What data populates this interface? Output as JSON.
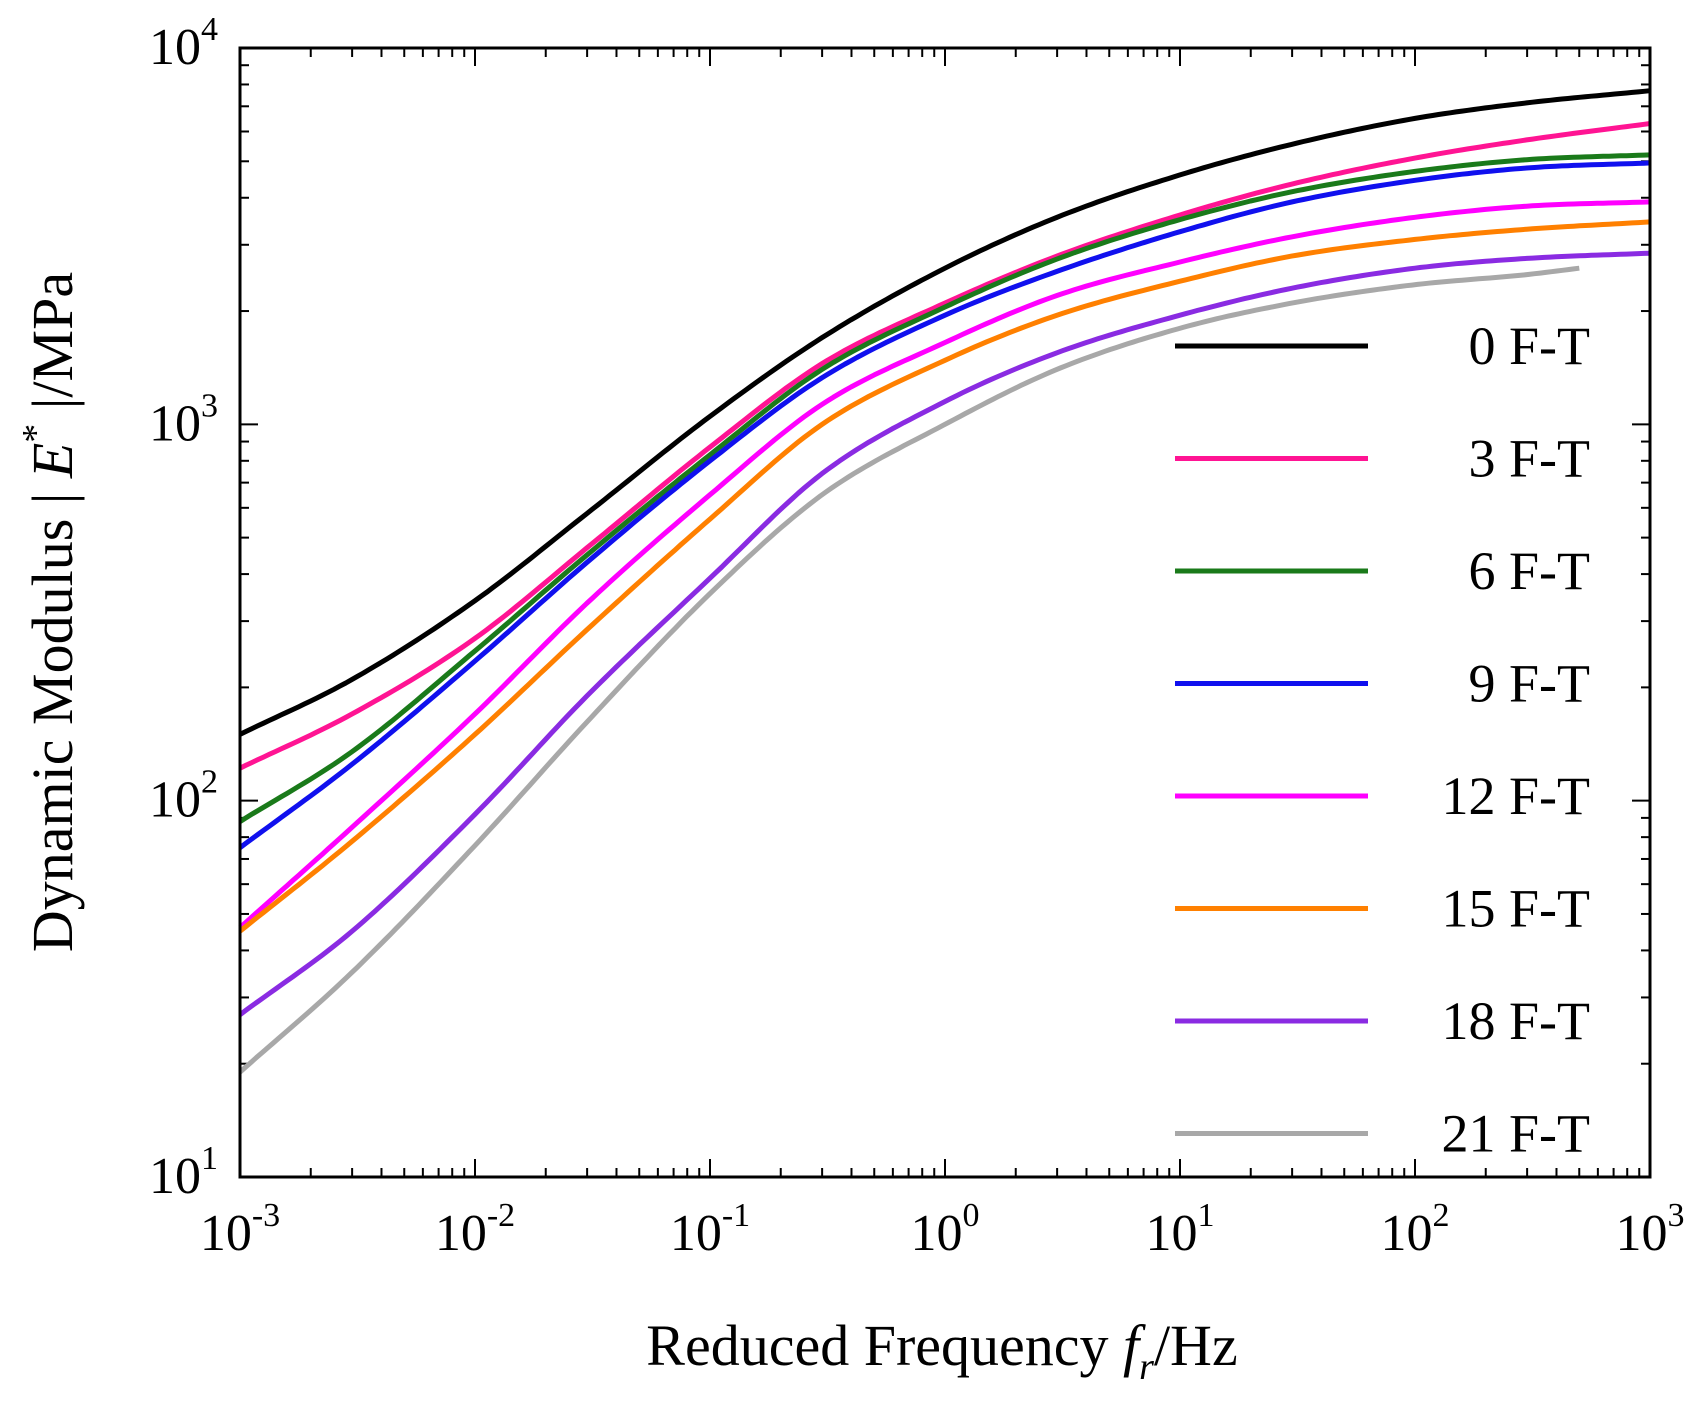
{
  "chart_data": {
    "type": "line",
    "title": "",
    "xlabel": {
      "prefix": "Reduced Frequency ",
      "var": "f",
      "sub": "r",
      "suffix": "/Hz"
    },
    "ylabel": {
      "prefix": "Dynamic Modulus | ",
      "var": "E",
      "sup": "*",
      "suffix": " |/MPa"
    },
    "xscale": "log",
    "yscale": "log",
    "xlim": [
      0.001,
      1000
    ],
    "ylim": [
      10,
      10000
    ],
    "x_ticks": [
      {
        "value": 0.001,
        "base": "10",
        "exp": "-3"
      },
      {
        "value": 0.01,
        "base": "10",
        "exp": "-2"
      },
      {
        "value": 0.1,
        "base": "10",
        "exp": "-1"
      },
      {
        "value": 1,
        "base": "10",
        "exp": "0"
      },
      {
        "value": 10,
        "base": "10",
        "exp": "1"
      },
      {
        "value": 100,
        "base": "10",
        "exp": "2"
      },
      {
        "value": 1000,
        "base": "10",
        "exp": "3"
      }
    ],
    "y_ticks": [
      {
        "value": 10,
        "base": "10",
        "exp": "1"
      },
      {
        "value": 100,
        "base": "10",
        "exp": "2"
      },
      {
        "value": 1000,
        "base": "10",
        "exp": "3"
      },
      {
        "value": 10000,
        "base": "10",
        "exp": "4"
      }
    ],
    "grid": false,
    "legend_position": "right",
    "series": [
      {
        "name": "0 F-T",
        "color": "#000000",
        "x": [
          0.001,
          0.003,
          0.01,
          0.03,
          0.1,
          0.3,
          1,
          3,
          10,
          30,
          100,
          300,
          1000
        ],
        "y": [
          150,
          210,
          340,
          580,
          1050,
          1700,
          2600,
          3550,
          4600,
          5550,
          6500,
          7150,
          7700
        ]
      },
      {
        "name": "3 F-T",
        "color": "#ff1493",
        "x": [
          0.001,
          0.003,
          0.01,
          0.03,
          0.1,
          0.3,
          1,
          3,
          10,
          30,
          100,
          300,
          1000
        ],
        "y": [
          122,
          170,
          270,
          470,
          870,
          1450,
          2100,
          2800,
          3600,
          4350,
          5100,
          5700,
          6300
        ]
      },
      {
        "name": "6 F-T",
        "color": "#1a7a1a",
        "x": [
          0.001,
          0.003,
          0.01,
          0.03,
          0.1,
          0.3,
          1,
          3,
          10,
          30,
          100,
          300,
          1000
        ],
        "y": [
          88,
          135,
          250,
          450,
          830,
          1400,
          2050,
          2750,
          3500,
          4150,
          4700,
          5050,
          5200
        ]
      },
      {
        "name": "9 F-T",
        "color": "#1010ee",
        "x": [
          0.001,
          0.003,
          0.01,
          0.03,
          0.1,
          0.3,
          1,
          3,
          10,
          30,
          100,
          300,
          1000
        ],
        "y": [
          75,
          125,
          235,
          430,
          800,
          1330,
          1950,
          2550,
          3250,
          3900,
          4450,
          4800,
          4950
        ]
      },
      {
        "name": "12 F-T",
        "color": "#ff00ff",
        "x": [
          0.001,
          0.003,
          0.01,
          0.03,
          0.1,
          0.3,
          1,
          3,
          10,
          30,
          100,
          300,
          1000
        ],
        "y": [
          46,
          85,
          170,
          335,
          650,
          1130,
          1650,
          2200,
          2700,
          3150,
          3550,
          3800,
          3900
        ]
      },
      {
        "name": "15 F-T",
        "color": "#ff8000",
        "x": [
          0.001,
          0.003,
          0.01,
          0.03,
          0.1,
          0.3,
          1,
          3,
          10,
          30,
          100,
          300,
          1000
        ],
        "y": [
          45,
          78,
          150,
          285,
          560,
          1000,
          1480,
          1950,
          2400,
          2800,
          3100,
          3300,
          3450
        ]
      },
      {
        "name": "18 F-T",
        "color": "#8a2be2",
        "x": [
          0.001,
          0.003,
          0.01,
          0.03,
          0.1,
          0.3,
          1,
          3,
          10,
          30,
          100,
          300,
          1000
        ],
        "y": [
          27,
          45,
          92,
          190,
          390,
          740,
          1150,
          1550,
          1950,
          2300,
          2600,
          2760,
          2850
        ]
      },
      {
        "name": "21 F-T",
        "color": "#a8a8a8",
        "x": [
          0.001,
          0.003,
          0.01,
          0.03,
          0.1,
          0.3,
          1,
          3,
          10,
          30,
          100,
          300,
          500
        ],
        "y": [
          19,
          35,
          76,
          162,
          355,
          650,
          1000,
          1400,
          1800,
          2100,
          2350,
          2500,
          2600
        ]
      }
    ]
  }
}
